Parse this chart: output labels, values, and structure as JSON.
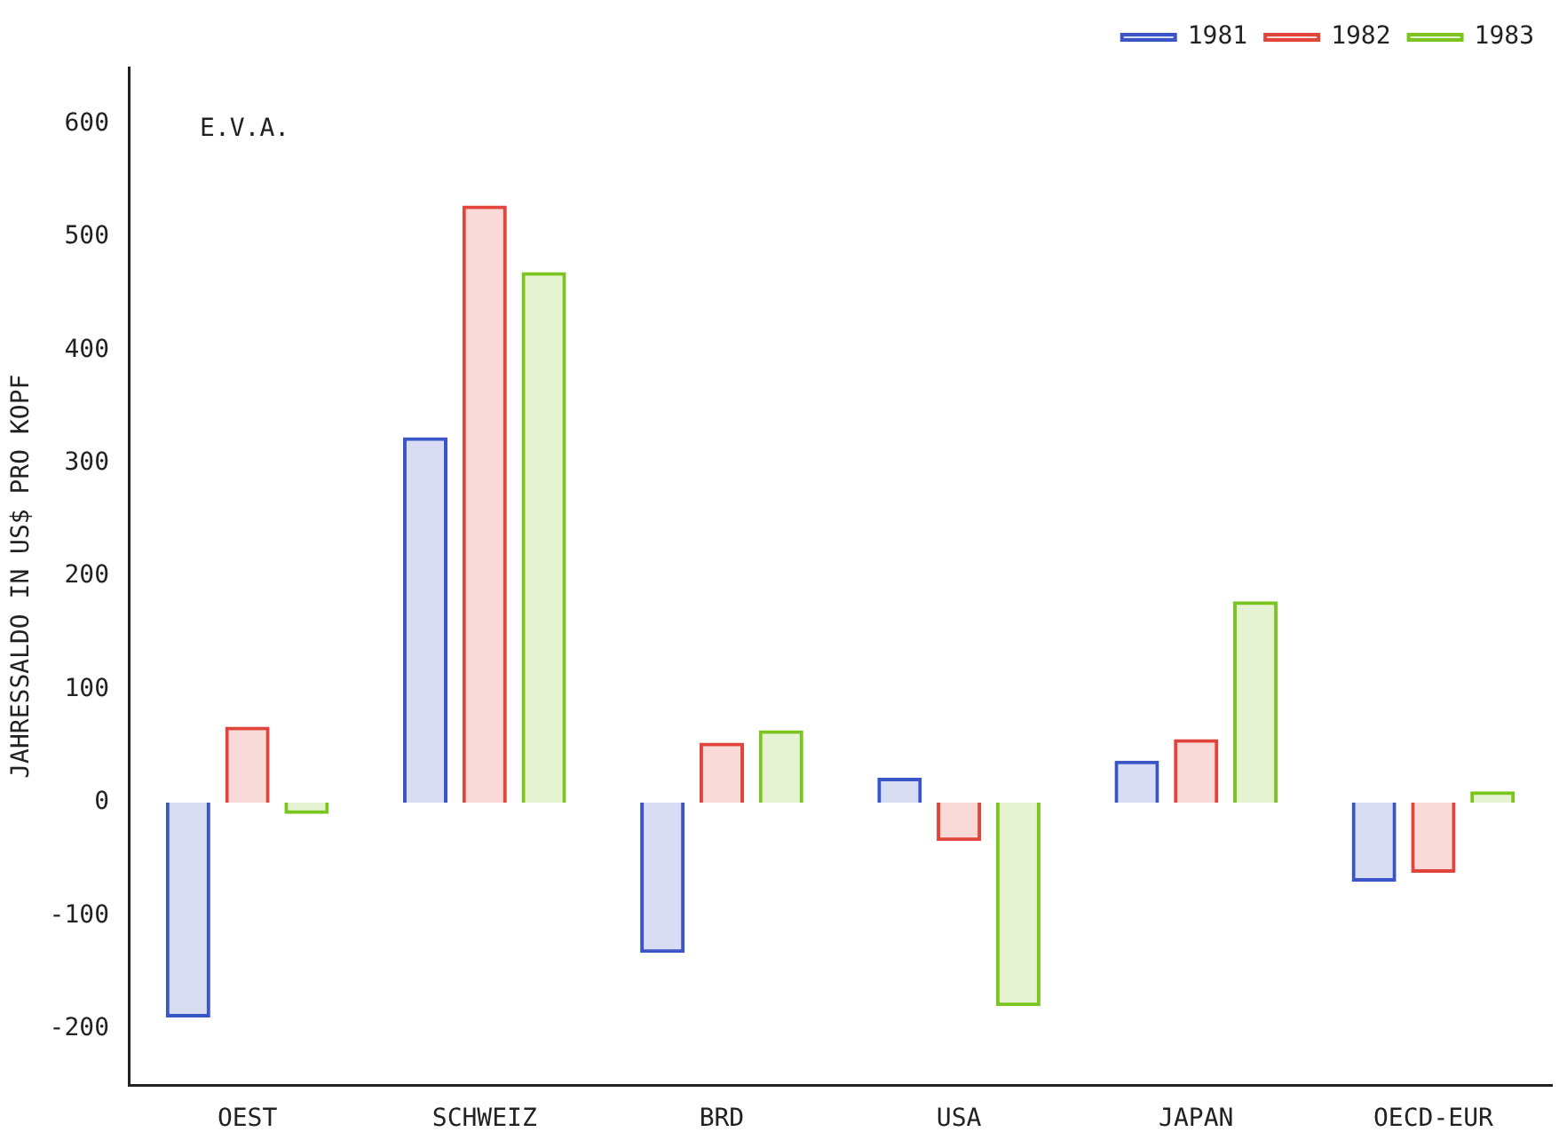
{
  "chart_data": {
    "type": "bar",
    "ylabel": "JAHRESSALDO IN US$ PRO KOPF",
    "annotations": [
      "E.V.A."
    ],
    "categories": [
      "OEST",
      "SCHWEIZ",
      "BRD",
      "USA",
      "JAPAN",
      "OECD-EUR"
    ],
    "series": [
      {
        "name": "1981",
        "color": "#3a55c8",
        "values": [
          -190,
          323,
          -133,
          22,
          37,
          -70
        ]
      },
      {
        "name": "1982",
        "color": "#e0443a",
        "values": [
          67,
          528,
          53,
          -34,
          56,
          -62
        ]
      },
      {
        "name": "1983",
        "color": "#7cc520",
        "values": [
          -10,
          469,
          64,
          -180,
          178,
          10
        ]
      }
    ],
    "ylim": [
      -250,
      650
    ],
    "yticks": [
      -200,
      -100,
      0,
      100,
      200,
      300,
      400,
      500,
      600
    ],
    "grid": false,
    "legend": "top right"
  }
}
